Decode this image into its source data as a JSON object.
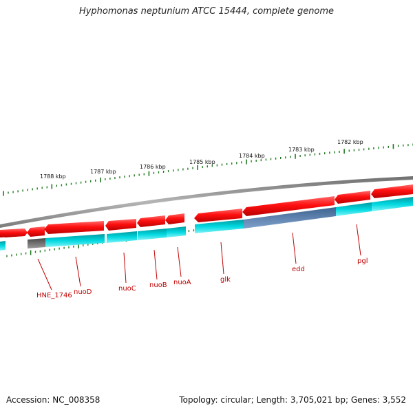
{
  "title": "Hyphomonas neptunium ATCC 15444, complete genome",
  "footer": {
    "accession": "Accession: NC_008358",
    "summary": "Topology: circular; Length: 3,705,021 bp; Genes: 3,552"
  },
  "colors": {
    "forward_gene": "#e00000",
    "reverse_gene": "#00c8d0",
    "selected_gene": "#5a7fa8",
    "pseudo_gene": "#666666",
    "backbone": "#8a8a8a",
    "tick": "#1f7a1f",
    "label": "#c00000"
  },
  "scale_ticks": [
    {
      "label": "1788 kbp"
    },
    {
      "label": "1787 kbp"
    },
    {
      "label": "1786 kbp"
    },
    {
      "label": "1785 kbp"
    },
    {
      "label": "1784 kbp"
    },
    {
      "label": "1783 kbp"
    },
    {
      "label": "1782 kbp"
    }
  ],
  "gene_labels": [
    "HNE_1746",
    "nuoD",
    "nuoC",
    "nuoB",
    "nuoA",
    "glk",
    "edd",
    "pgl"
  ]
}
